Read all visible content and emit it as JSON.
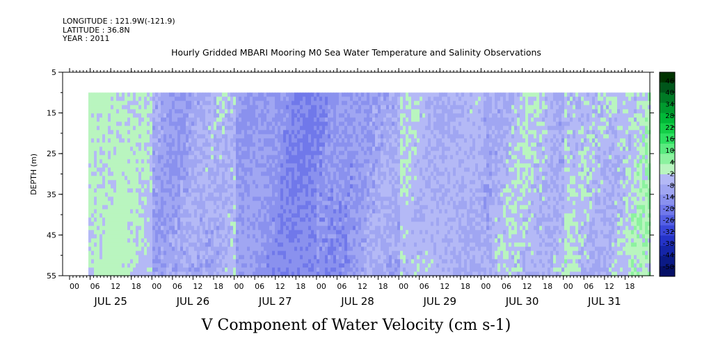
{
  "header": {
    "longitude": "LONGITUDE : 121.9W(-121.9)",
    "latitude": "LATITUDE : 36.8N",
    "year": "YEAR : 2011"
  },
  "chart_data": {
    "type": "heatmap",
    "title": "Hourly Gridded MBARI Mooring M0 Sea Water Temperature and Salinity Observations",
    "xlabel": "V Component of Water Velocity (cm s-1)",
    "ylabel": "DEPTH (m)",
    "ylim": [
      5,
      55
    ],
    "y_inverted": true,
    "y_ticks": [
      5,
      15,
      25,
      35,
      45,
      55
    ],
    "x_hour_labels": [
      "00",
      "06",
      "12",
      "18",
      "00",
      "06",
      "12",
      "18",
      "00",
      "06",
      "12",
      "18",
      "00",
      "06",
      "12",
      "18",
      "00",
      "06",
      "12",
      "18",
      "00",
      "06",
      "12",
      "18",
      "00",
      "06",
      "12",
      "18"
    ],
    "x_day_labels": [
      "JUL 25",
      "JUL 26",
      "JUL 27",
      "JUL 28",
      "JUL 29",
      "JUL 30",
      "JUL 31"
    ],
    "data_depth_range": [
      10,
      55
    ],
    "colorbar": {
      "levels": [
        -50,
        -44,
        -38,
        -32,
        -26,
        -20,
        -14,
        -8,
        -2,
        4,
        10,
        16,
        22,
        28,
        34,
        40,
        46
      ],
      "labels": [
        "46",
        "40",
        "34",
        "28",
        "22",
        "16",
        "10",
        "4",
        "-2",
        "-8",
        "-14",
        "-20",
        "-26",
        "-32",
        "-38",
        "-44",
        "-50"
      ],
      "colors": [
        "#003300",
        "#00561a",
        "#007a25",
        "#009a2e",
        "#00b837",
        "#14cf48",
        "#2ee061",
        "#5aea7f",
        "#8cf29f",
        "#b9f5bf",
        "#b4b9f6",
        "#a0a6f2",
        "#8a91ee",
        "#7078ea",
        "#5560e4",
        "#3a47da",
        "#2433c8",
        "#1525a8",
        "#0b1a86",
        "#050f66"
      ]
    },
    "day_panels": [
      {
        "day": "JUL 25",
        "dominant": "positive",
        "range": [
          4,
          16
        ]
      },
      {
        "day": "JUL 26",
        "dominant": "mixed",
        "range": [
          -8,
          16
        ]
      },
      {
        "day": "JUL 27",
        "dominant": "negative",
        "range": [
          -14,
          4
        ]
      },
      {
        "day": "JUL 28",
        "dominant": "mixed",
        "range": [
          -14,
          10
        ]
      },
      {
        "day": "JUL 29",
        "dominant": "positive",
        "range": [
          -2,
          16
        ]
      },
      {
        "day": "JUL 30",
        "dominant": "positive",
        "range": [
          -8,
          16
        ]
      },
      {
        "day": "JUL 31",
        "dominant": "positive",
        "range": [
          -2,
          22
        ]
      }
    ]
  }
}
